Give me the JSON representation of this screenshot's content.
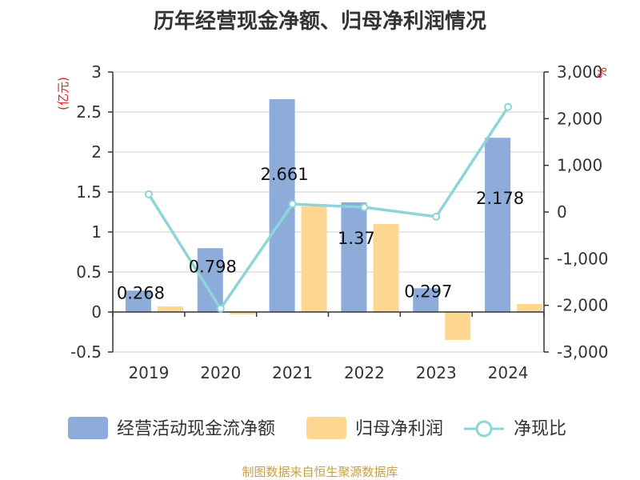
{
  "title": "历年经营现金净额、归母净利润情况",
  "source": "制图数据来自恒生聚源数据库",
  "left_unit": "(亿元)",
  "right_unit": "%",
  "colors": {
    "cash_flow": "#8eacda",
    "net_profit": "#fed792",
    "ratio_line": "#8dd5d8",
    "grid": "#cccccc",
    "axis": "#333333"
  },
  "chart_data": {
    "type": "bar",
    "categories": [
      "2019",
      "2020",
      "2021",
      "2022",
      "2023",
      "2024"
    ],
    "series": [
      {
        "name": "经营活动现金流净额",
        "axis": "left",
        "values": [
          0.268,
          0.798,
          2.661,
          1.37,
          0.297,
          2.178
        ]
      },
      {
        "name": "归母净利润",
        "axis": "left",
        "values": [
          0.07,
          -0.03,
          1.32,
          1.1,
          -0.35,
          0.1
        ]
      },
      {
        "name": "净现比",
        "axis": "right",
        "type": "line",
        "values": [
          380,
          -2070,
          170,
          100,
          -100,
          2250
        ]
      }
    ],
    "data_labels": [
      "0.268",
      "0.798",
      "2.661",
      "1.37",
      "0.297",
      "2.178"
    ],
    "y_left": {
      "min": -0.5,
      "max": 3,
      "ticks": [
        "-0.5",
        "0",
        "0.5",
        "1",
        "1.5",
        "2",
        "2.5",
        "3"
      ]
    },
    "y_right": {
      "min": -3000,
      "max": 3000,
      "ticks": [
        "-3,000",
        "-2,000",
        "-1,000",
        "0",
        "1,000",
        "2,000",
        "3,000"
      ]
    },
    "grid": true,
    "legend_position": "bottom"
  }
}
